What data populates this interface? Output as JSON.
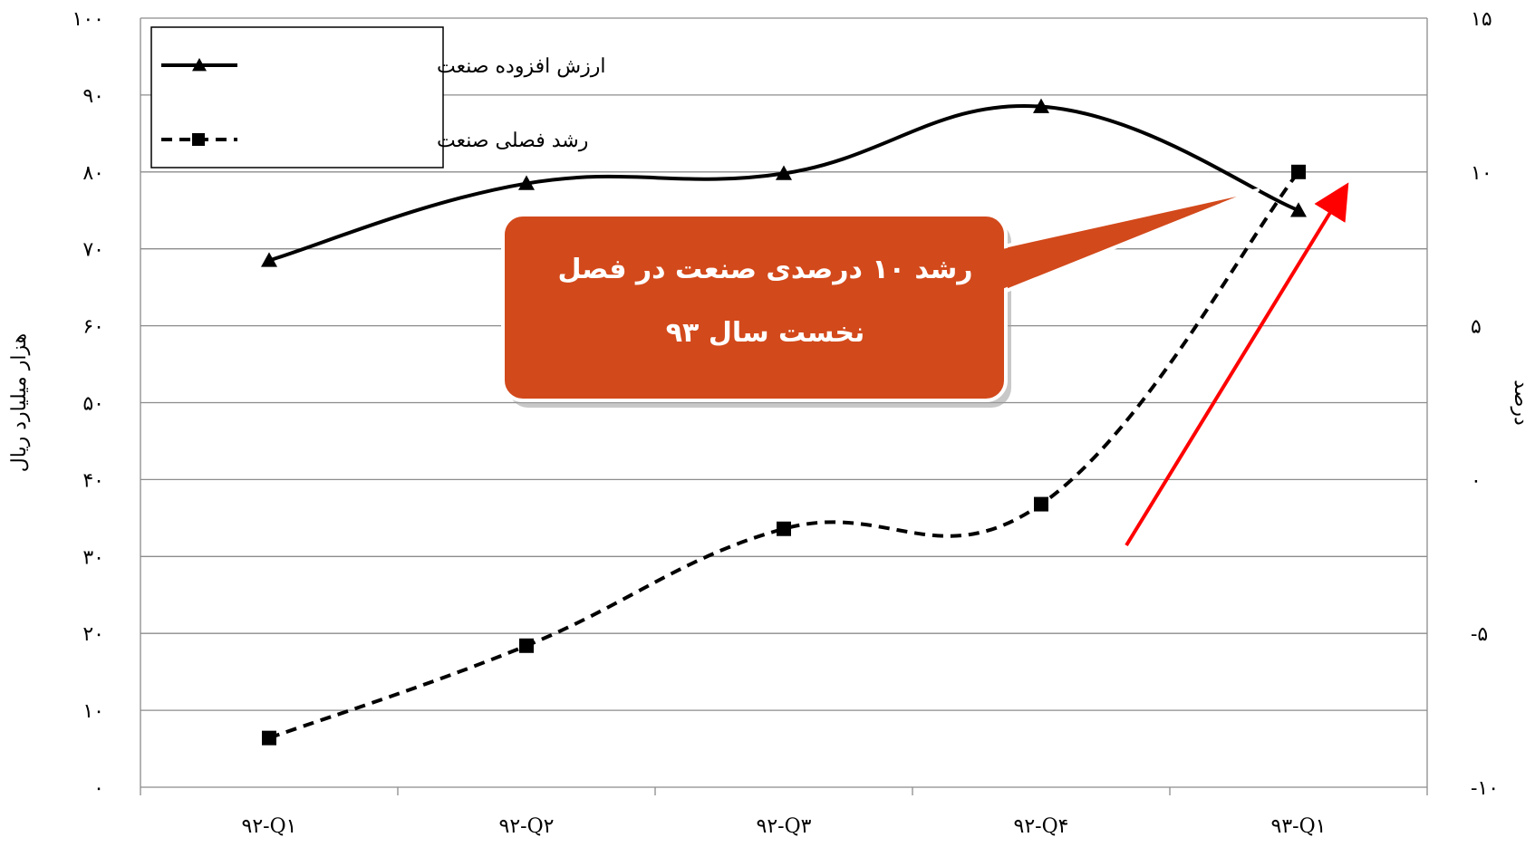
{
  "chart_data": {
    "type": "line",
    "categories": [
      "۹۲-Q۱",
      "۹۲-Q۲",
      "۹۲-Q۳",
      "۹۲-Q۴",
      "۹۳-Q۱"
    ],
    "left_axis": {
      "title": "هزار میلیارد ریال",
      "ylim": [
        0,
        100
      ],
      "ticks": [
        {
          "v": 0,
          "label": "۰"
        },
        {
          "v": 10,
          "label": "۱۰"
        },
        {
          "v": 20,
          "label": "۲۰"
        },
        {
          "v": 30,
          "label": "۳۰"
        },
        {
          "v": 40,
          "label": "۴۰"
        },
        {
          "v": 50,
          "label": "۵۰"
        },
        {
          "v": 60,
          "label": "۶۰"
        },
        {
          "v": 70,
          "label": "۷۰"
        },
        {
          "v": 80,
          "label": "۸۰"
        },
        {
          "v": 90,
          "label": "۹۰"
        },
        {
          "v": 100,
          "label": "۱۰۰"
        }
      ]
    },
    "right_axis": {
      "title": "درصد",
      "ylim": [
        -10,
        15
      ],
      "ticks": [
        {
          "v": -10,
          "label": "-۱۰"
        },
        {
          "v": -5,
          "label": "-۵"
        },
        {
          "v": 0,
          "label": "۰"
        },
        {
          "v": 5,
          "label": "۵"
        },
        {
          "v": 10,
          "label": "۱۰"
        },
        {
          "v": 15,
          "label": "۱۵"
        }
      ]
    },
    "series": [
      {
        "name": "ارزش افزوده صنعت",
        "axis": "left",
        "marker": "triangle",
        "style": "solid",
        "values": [
          68.5,
          78.5,
          79.8,
          88.5,
          75.0
        ]
      },
      {
        "name": "رشد فصلی صنعت",
        "axis": "right",
        "marker": "square",
        "style": "dashed",
        "values": [
          -8.4,
          -5.4,
          -1.6,
          -0.8,
          10.0
        ]
      }
    ],
    "grid": true,
    "legend": "top-left",
    "annotation": {
      "lines": [
        "رشد ۱۰ درصدی صنعت در فصل",
        "نخست سال ۹۳"
      ],
      "fill": "#D2491B",
      "arrow_color": "#FF0000"
    }
  }
}
